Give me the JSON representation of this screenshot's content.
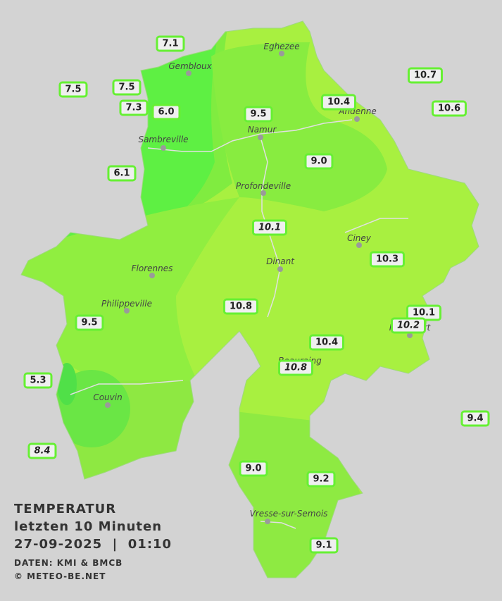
{
  "cities": [
    "Eghezee",
    "Gembloux",
    "Andenne",
    "Namur",
    "Sambreville",
    "Profondeville",
    "Ciney",
    "Dinant",
    "Florennes",
    "Philippeville",
    "Rochefort",
    "Beauraing",
    "Couvin",
    "Vresse-sur-Semois"
  ],
  "stations": [
    {
      "label": "7.1",
      "italic": false
    },
    {
      "label": "7.5",
      "italic": false
    },
    {
      "label": "7.5",
      "italic": false
    },
    {
      "label": "7.3",
      "italic": false
    },
    {
      "label": "6.0",
      "italic": false
    },
    {
      "label": "9.5",
      "italic": false
    },
    {
      "label": "10.4",
      "italic": false
    },
    {
      "label": "10.7",
      "italic": false
    },
    {
      "label": "10.6",
      "italic": false
    },
    {
      "label": "6.1",
      "italic": false
    },
    {
      "label": "9.0",
      "italic": false
    },
    {
      "label": "10.1",
      "italic": true
    },
    {
      "label": "10.3",
      "italic": false
    },
    {
      "label": "10.8",
      "italic": false
    },
    {
      "label": "10.1",
      "italic": false
    },
    {
      "label": "10.2",
      "italic": true
    },
    {
      "label": "9.5",
      "italic": false
    },
    {
      "label": "10.4",
      "italic": false
    },
    {
      "label": "10.8",
      "italic": true
    },
    {
      "label": "5.3",
      "italic": false
    },
    {
      "label": "9.4",
      "italic": false
    },
    {
      "label": "8.4",
      "italic": true
    },
    {
      "label": "9.0",
      "italic": false
    },
    {
      "label": "9.2",
      "italic": false
    },
    {
      "label": "9.1",
      "italic": false
    }
  ],
  "legend": {
    "title": "TEMPERATUR",
    "period": "letzten 10 Minuten",
    "datetime": "27-09-2025  |  01:10",
    "source": "DATEN: KMI & BMCB",
    "copyright": "© METEO-BE.NET"
  }
}
